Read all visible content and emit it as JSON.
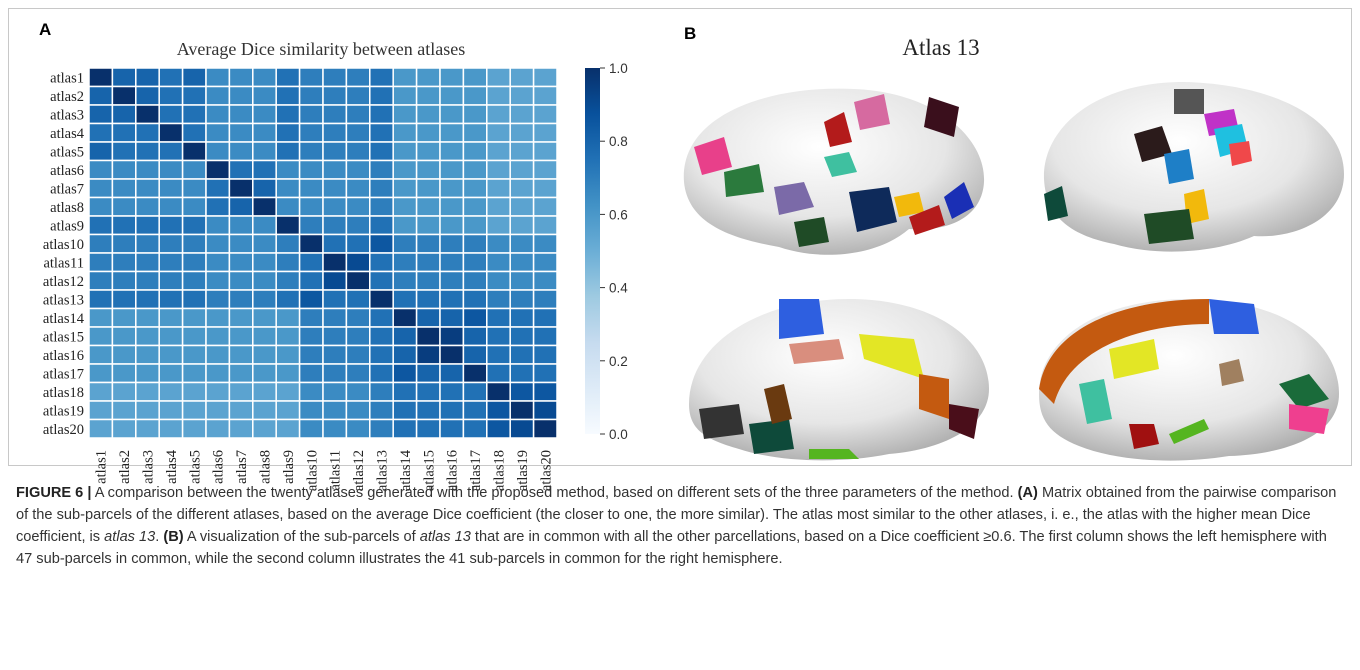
{
  "panel_a_label": "A",
  "panel_b_label": "B",
  "panel_b_title": "Atlas 13",
  "chart_data": {
    "type": "heatmap",
    "title": "Average Dice similarity between atlases",
    "colormap": "Blues",
    "x": [
      "atlas1",
      "atlas2",
      "atlas3",
      "atlas4",
      "atlas5",
      "atlas6",
      "atlas7",
      "atlas8",
      "atlas9",
      "atlas10",
      "atlas11",
      "atlas12",
      "atlas13",
      "atlas14",
      "atlas15",
      "atlas16",
      "atlas17",
      "atlas18",
      "atlas19",
      "atlas20"
    ],
    "y": [
      "atlas1",
      "atlas2",
      "atlas3",
      "atlas4",
      "atlas5",
      "atlas6",
      "atlas7",
      "atlas8",
      "atlas9",
      "atlas10",
      "atlas11",
      "atlas12",
      "atlas13",
      "atlas14",
      "atlas15",
      "atlas16",
      "atlas17",
      "atlas18",
      "atlas19",
      "atlas20"
    ],
    "values": [
      [
        1,
        0.8,
        0.8,
        0.75,
        0.8,
        0.65,
        0.65,
        0.65,
        0.75,
        0.7,
        0.7,
        0.7,
        0.75,
        0.6,
        0.6,
        0.6,
        0.6,
        0.55,
        0.55,
        0.55
      ],
      [
        0.8,
        1,
        0.8,
        0.75,
        0.75,
        0.65,
        0.65,
        0.65,
        0.75,
        0.7,
        0.7,
        0.7,
        0.75,
        0.6,
        0.6,
        0.6,
        0.6,
        0.55,
        0.55,
        0.55
      ],
      [
        0.8,
        0.8,
        1,
        0.75,
        0.75,
        0.65,
        0.65,
        0.65,
        0.75,
        0.7,
        0.7,
        0.7,
        0.75,
        0.6,
        0.6,
        0.6,
        0.6,
        0.55,
        0.55,
        0.55
      ],
      [
        0.75,
        0.75,
        0.75,
        1,
        0.75,
        0.65,
        0.65,
        0.65,
        0.75,
        0.7,
        0.7,
        0.7,
        0.75,
        0.6,
        0.6,
        0.6,
        0.6,
        0.55,
        0.55,
        0.55
      ],
      [
        0.8,
        0.75,
        0.75,
        0.75,
        1,
        0.65,
        0.65,
        0.65,
        0.75,
        0.7,
        0.7,
        0.7,
        0.75,
        0.6,
        0.6,
        0.6,
        0.6,
        0.55,
        0.55,
        0.55
      ],
      [
        0.65,
        0.65,
        0.65,
        0.65,
        0.65,
        1,
        0.75,
        0.75,
        0.65,
        0.65,
        0.65,
        0.65,
        0.7,
        0.6,
        0.6,
        0.6,
        0.6,
        0.55,
        0.55,
        0.55
      ],
      [
        0.65,
        0.65,
        0.65,
        0.65,
        0.65,
        0.75,
        1,
        0.8,
        0.65,
        0.65,
        0.65,
        0.65,
        0.7,
        0.6,
        0.6,
        0.6,
        0.6,
        0.55,
        0.55,
        0.55
      ],
      [
        0.65,
        0.65,
        0.65,
        0.65,
        0.65,
        0.75,
        0.8,
        1,
        0.65,
        0.65,
        0.65,
        0.65,
        0.7,
        0.6,
        0.6,
        0.6,
        0.6,
        0.55,
        0.55,
        0.55
      ],
      [
        0.75,
        0.75,
        0.75,
        0.75,
        0.75,
        0.65,
        0.65,
        0.65,
        1,
        0.7,
        0.7,
        0.7,
        0.75,
        0.6,
        0.6,
        0.6,
        0.6,
        0.55,
        0.55,
        0.55
      ],
      [
        0.7,
        0.7,
        0.7,
        0.7,
        0.7,
        0.65,
        0.65,
        0.65,
        0.7,
        1,
        0.75,
        0.75,
        0.85,
        0.7,
        0.7,
        0.7,
        0.7,
        0.65,
        0.65,
        0.65
      ],
      [
        0.7,
        0.7,
        0.7,
        0.7,
        0.7,
        0.65,
        0.65,
        0.65,
        0.7,
        0.75,
        1,
        0.9,
        0.75,
        0.7,
        0.7,
        0.7,
        0.7,
        0.65,
        0.65,
        0.65
      ],
      [
        0.7,
        0.7,
        0.7,
        0.7,
        0.7,
        0.65,
        0.65,
        0.65,
        0.7,
        0.75,
        0.9,
        1,
        0.75,
        0.7,
        0.7,
        0.7,
        0.7,
        0.65,
        0.65,
        0.65
      ],
      [
        0.75,
        0.75,
        0.75,
        0.75,
        0.75,
        0.7,
        0.7,
        0.7,
        0.75,
        0.85,
        0.75,
        0.75,
        1,
        0.75,
        0.75,
        0.75,
        0.75,
        0.7,
        0.7,
        0.7
      ],
      [
        0.6,
        0.6,
        0.6,
        0.6,
        0.6,
        0.6,
        0.6,
        0.6,
        0.6,
        0.7,
        0.7,
        0.7,
        0.75,
        1,
        0.8,
        0.8,
        0.85,
        0.75,
        0.75,
        0.75
      ],
      [
        0.6,
        0.6,
        0.6,
        0.6,
        0.6,
        0.6,
        0.6,
        0.6,
        0.6,
        0.7,
        0.7,
        0.7,
        0.75,
        0.8,
        1,
        0.95,
        0.8,
        0.75,
        0.75,
        0.75
      ],
      [
        0.6,
        0.6,
        0.6,
        0.6,
        0.6,
        0.6,
        0.6,
        0.6,
        0.6,
        0.7,
        0.7,
        0.7,
        0.75,
        0.8,
        0.95,
        1,
        0.8,
        0.75,
        0.75,
        0.75
      ],
      [
        0.6,
        0.6,
        0.6,
        0.6,
        0.6,
        0.6,
        0.6,
        0.6,
        0.6,
        0.7,
        0.7,
        0.7,
        0.75,
        0.85,
        0.8,
        0.8,
        1,
        0.75,
        0.75,
        0.75
      ],
      [
        0.55,
        0.55,
        0.55,
        0.55,
        0.55,
        0.55,
        0.55,
        0.55,
        0.55,
        0.65,
        0.65,
        0.65,
        0.7,
        0.75,
        0.75,
        0.75,
        0.75,
        1,
        0.85,
        0.85
      ],
      [
        0.55,
        0.55,
        0.55,
        0.55,
        0.55,
        0.55,
        0.55,
        0.55,
        0.55,
        0.65,
        0.65,
        0.65,
        0.7,
        0.75,
        0.75,
        0.75,
        0.75,
        0.85,
        1,
        0.9
      ],
      [
        0.55,
        0.55,
        0.55,
        0.55,
        0.55,
        0.55,
        0.55,
        0.55,
        0.55,
        0.65,
        0.65,
        0.65,
        0.7,
        0.75,
        0.75,
        0.75,
        0.75,
        0.85,
        0.9,
        1
      ]
    ],
    "clim": [
      0,
      1
    ],
    "cticks": [
      {
        "value": 0,
        "label": "0.0"
      },
      0.2,
      0.4,
      0.6,
      0.8,
      {
        "value": 1,
        "label": "1.0"
      }
    ]
  },
  "caption": [
    "FIGURE 6 |",
    " A comparison between the twenty atlases generated with the proposed method, based on different sets of the three parameters of the method. ",
    "(A)",
    " Matrix obtained from the pairwise comparison of the sub-parcels of the different atlases, based on the average Dice coefficient (the closer to one, the more similar). The atlas most similar to the other atlases, i. e., the atlas with the higher mean Dice coefficient, is ",
    "atlas 13",
    ". ",
    "(B)",
    " A visualization of the sub-parcels of ",
    "atlas 13",
    " that are in common with all the other parcellations, based on a Dice coefficient ≥0.6. The first column shows the left hemisphere with 47 sub-parcels in common, while the second column illustrates the 41 sub-parcels in common for the right hemisphere."
  ]
}
